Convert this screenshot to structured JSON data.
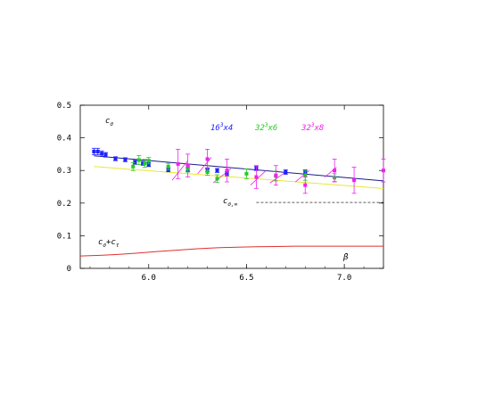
{
  "chart_data": {
    "type": "scatter",
    "xlim": [
      5.65,
      7.2
    ],
    "ylim": [
      0.0,
      0.5
    ],
    "xticks": [
      6.0,
      6.5,
      7.0
    ],
    "xtick_labels": [
      "6.0",
      "6.5",
      "7.0"
    ],
    "yticks": [
      0.0,
      0.1,
      0.2,
      0.3,
      0.4,
      0.5
    ],
    "ytick_labels": [
      "0",
      "0.1",
      "0.2",
      "0.3",
      "0.4",
      "0.5"
    ],
    "grid": false,
    "title_annotation": {
      "base": "c",
      "sub": "σ"
    },
    "sum_annotation": {
      "a": "c",
      "a_sub": "σ",
      "plus": "+",
      "b": "c",
      "b_sub": "τ"
    },
    "asym_annotation": {
      "base": "c",
      "sub": "σ,∞"
    },
    "xaxis_annotation": "β",
    "legend": [
      {
        "label": "16",
        "sup": "3",
        "rest": "x4",
        "color": "#2020ff"
      },
      {
        "label": "32",
        "sup": "3",
        "rest": "x6",
        "color": "#22cc22"
      },
      {
        "label": "32",
        "sup": "3",
        "rest": "x8",
        "color": "#ee22ee"
      }
    ],
    "series": [
      {
        "color": "#2020ff",
        "points": [
          [
            5.72,
            0.358,
            0.01
          ],
          [
            5.74,
            0.358,
            0.01
          ],
          [
            5.76,
            0.352,
            0.008
          ],
          [
            5.78,
            0.348,
            0.007
          ],
          [
            5.83,
            0.336,
            0.006
          ],
          [
            5.88,
            0.333,
            0.006
          ],
          [
            5.93,
            0.325,
            0.006
          ],
          [
            5.97,
            0.322,
            0.006
          ],
          [
            6.0,
            0.318,
            0.006
          ],
          [
            6.1,
            0.302,
            0.006
          ],
          [
            6.2,
            0.303,
            0.006
          ],
          [
            6.3,
            0.302,
            0.006
          ],
          [
            6.35,
            0.3,
            0.006
          ],
          [
            6.4,
            0.29,
            0.006
          ],
          [
            6.55,
            0.307,
            0.007
          ],
          [
            6.7,
            0.295,
            0.007
          ],
          [
            6.8,
            0.295,
            0.007
          ]
        ]
      },
      {
        "color": "#22cc22",
        "points": [
          [
            5.92,
            0.312,
            0.012
          ],
          [
            5.95,
            0.332,
            0.014
          ],
          [
            5.98,
            0.322,
            0.012
          ],
          [
            6.0,
            0.33,
            0.01
          ],
          [
            6.1,
            0.312,
            0.01
          ],
          [
            6.2,
            0.305,
            0.01
          ],
          [
            6.3,
            0.295,
            0.01
          ],
          [
            6.35,
            0.275,
            0.012
          ],
          [
            6.5,
            0.29,
            0.015
          ],
          [
            6.65,
            0.283,
            0.015
          ],
          [
            6.8,
            0.285,
            0.015
          ],
          [
            6.95,
            0.278,
            0.012
          ]
        ]
      },
      {
        "color": "#ee22ee",
        "points": [
          [
            6.15,
            0.32,
            0.045
          ],
          [
            6.2,
            0.315,
            0.035
          ],
          [
            6.3,
            0.335,
            0.03
          ],
          [
            6.4,
            0.3,
            0.035
          ],
          [
            6.55,
            0.28,
            0.035
          ],
          [
            6.65,
            0.285,
            0.03
          ],
          [
            6.8,
            0.255,
            0.025
          ],
          [
            6.95,
            0.3,
            0.035
          ],
          [
            7.05,
            0.27,
            0.04
          ],
          [
            7.2,
            0.3,
            0.035
          ]
        ]
      }
    ],
    "fit_blue": {
      "color": "#1a1a8a",
      "x": [
        5.72,
        7.2
      ],
      "y": [
        0.345,
        0.268
      ]
    },
    "fit_yellow": {
      "color": "#e8e830",
      "x": [
        5.72,
        7.2
      ],
      "y": [
        0.312,
        0.245
      ]
    },
    "asymptote": {
      "color": "#000000",
      "x": [
        6.55,
        7.2
      ],
      "y": 0.202
    },
    "sum_curve": {
      "color": "#e03030",
      "x": [
        5.65,
        5.75,
        5.85,
        5.95,
        6.05,
        6.15,
        6.25,
        6.35,
        6.45,
        6.55,
        6.65,
        6.75,
        6.85,
        6.95,
        7.05,
        7.2
      ],
      "y": [
        0.038,
        0.04,
        0.043,
        0.047,
        0.052,
        0.056,
        0.06,
        0.063,
        0.065,
        0.066,
        0.067,
        0.068,
        0.068,
        0.068,
        0.068,
        0.068
      ]
    },
    "magenta_segments": [
      {
        "x": [
          6.12,
          6.2
        ],
        "y": [
          0.27,
          0.33
        ]
      },
      {
        "x": [
          6.25,
          6.32
        ],
        "y": [
          0.29,
          0.34
        ]
      },
      {
        "x": [
          6.33,
          6.42
        ],
        "y": [
          0.262,
          0.305
        ]
      },
      {
        "x": [
          6.52,
          6.6
        ],
        "y": [
          0.255,
          0.3
        ]
      },
      {
        "x": [
          6.62,
          6.7
        ],
        "y": [
          0.262,
          0.295
        ]
      },
      {
        "x": [
          6.75,
          6.82
        ],
        "y": [
          0.265,
          0.3
        ]
      },
      {
        "x": [
          6.9,
          6.96
        ],
        "y": [
          0.28,
          0.31
        ]
      }
    ]
  }
}
